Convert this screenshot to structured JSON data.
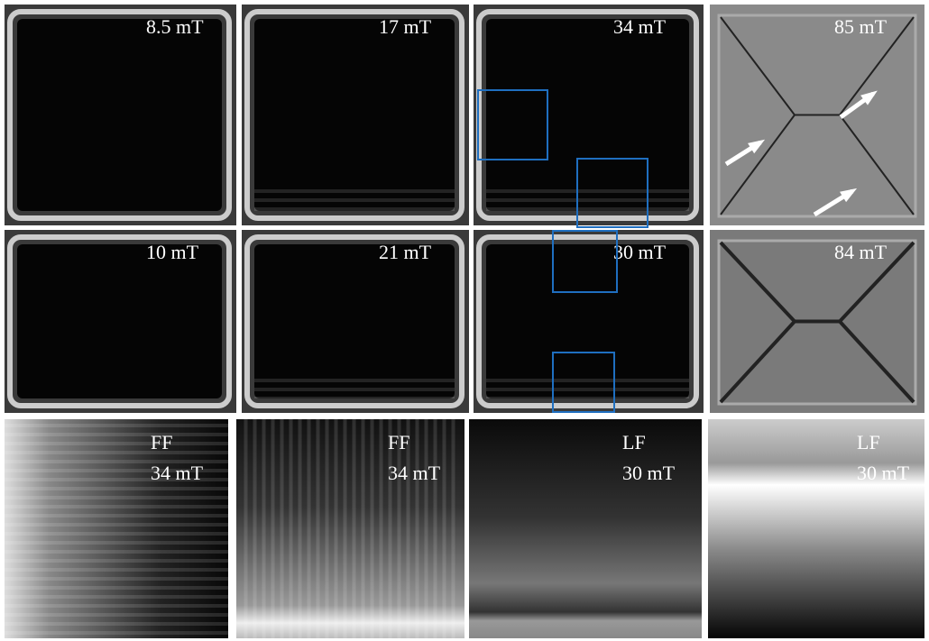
{
  "rows": [
    [
      {
        "label": "8.5 mT"
      },
      {
        "label": "17 mT"
      },
      {
        "label": "34 mT"
      },
      {
        "label": "85 mT"
      }
    ],
    [
      {
        "label": "10 mT"
      },
      {
        "label": "21 mT"
      },
      {
        "label": "30 mT"
      },
      {
        "label": "84 mT"
      }
    ]
  ],
  "zooms": [
    {
      "mode": "FF",
      "field": "34 mT"
    },
    {
      "mode": "FF",
      "field": "34 mT"
    },
    {
      "mode": "LF",
      "field": "30 mT"
    },
    {
      "mode": "LF",
      "field": "30 mT"
    }
  ]
}
